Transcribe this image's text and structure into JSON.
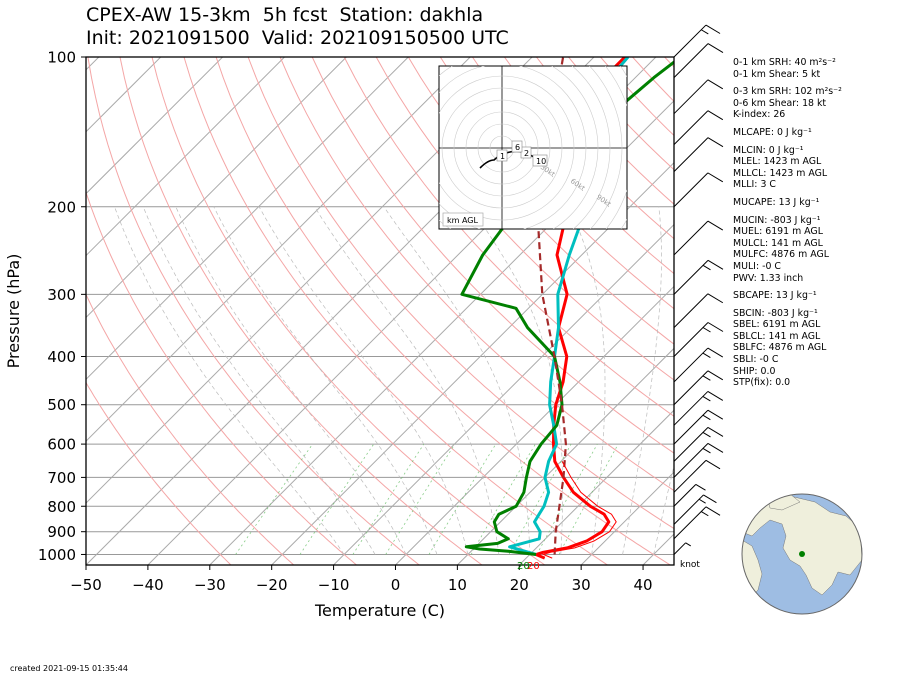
{
  "header": {
    "title_line1": "CPEX-AW 15-3km  5h fcst  Station: dakhla",
    "title_line2": "Init: 2021091500  Valid: 202109150500 UTC"
  },
  "footer": {
    "created": "created 2021-09-15 01:35:44"
  },
  "wind_units": "knot",
  "hodograph": {
    "label": "km AGL",
    "ring_labels": [
      "30kt",
      "60kt",
      "90kt"
    ],
    "height_markers": [
      "1",
      "2",
      "6",
      "10"
    ]
  },
  "stats": [
    "0-1 km SRH: 40 m²s⁻²",
    "0-1 km Shear: 5 kt",
    "0-3 km SRH: 102 m²s⁻²",
    "0-6 km Shear: 18 kt",
    "K-index: 26",
    "MLCAPE: 0 J kg⁻¹",
    "MLCIN: 0 J kg⁻¹",
    "MLEL: 1423 m AGL",
    "MLLCL: 1423 m AGL",
    "MLLI: 3 C",
    "MUCAPE: 13 J kg⁻¹",
    "MUCIN: -803 J kg⁻¹",
    "MUEL: 6191 m AGL",
    "MULCL: 141 m AGL",
    "MULFC: 4876 m AGL",
    "MULI: -0 C",
    "PWV: 1.33 inch",
    "SBCAPE: 13 J kg⁻¹",
    "SBCIN: -803 J kg⁻¹",
    "SBEL: 6191 m AGL",
    "SBLCL: 141 m AGL",
    "SBLFC: 4876 m AGL",
    "SBLI: -0 C",
    "SHIP: 0.0",
    "STP(fix): 0.0"
  ],
  "chart_data": {
    "type": "line",
    "xlabel": "Temperature (C)",
    "ylabel": "Pressure (hPa)",
    "xlim": [
      -50,
      45
    ],
    "ylim": [
      1050,
      100
    ],
    "y_scale": "log",
    "x_ticks": [
      -50,
      -40,
      -30,
      -20,
      -10,
      0,
      10,
      20,
      30,
      40
    ],
    "y_ticks": [
      100,
      200,
      300,
      400,
      500,
      600,
      700,
      800,
      900,
      1000
    ],
    "surface_labels": {
      "temp": "20",
      "dew": "20"
    },
    "series": [
      {
        "color": "#ff0000",
        "points": [
          [
            23,
            1017
          ],
          [
            21,
            1000
          ],
          [
            21.8,
            990
          ],
          [
            25,
            970
          ],
          [
            27,
            940
          ],
          [
            28,
            900
          ],
          [
            27.5,
            860
          ],
          [
            25.5,
            830
          ],
          [
            22,
            800
          ],
          [
            17,
            750
          ],
          [
            13,
            700
          ],
          [
            9,
            650
          ],
          [
            6,
            600
          ],
          [
            3,
            550
          ],
          [
            0,
            500
          ],
          [
            -2.5,
            450
          ],
          [
            -6,
            400
          ],
          [
            -12,
            350
          ],
          [
            -16,
            300
          ],
          [
            -24,
            250
          ],
          [
            -30,
            200
          ],
          [
            -35,
            170
          ],
          [
            -39,
            150
          ],
          [
            -43,
            135
          ],
          [
            -45,
            130
          ],
          [
            -45,
            100
          ]
        ]
      },
      {
        "color": "#00bfbf",
        "points": [
          [
            21,
            1000
          ],
          [
            15.5,
            965
          ],
          [
            19,
            930
          ],
          [
            18,
            900
          ],
          [
            15.5,
            860
          ],
          [
            15,
            830
          ],
          [
            14.5,
            800
          ],
          [
            13,
            750
          ],
          [
            10,
            700
          ],
          [
            8,
            650
          ],
          [
            6.5,
            600
          ],
          [
            3,
            550
          ],
          [
            -1,
            500
          ],
          [
            -4.5,
            450
          ],
          [
            -8,
            400
          ],
          [
            -12,
            350
          ],
          [
            -17.5,
            300
          ],
          [
            -22,
            250
          ],
          [
            -27,
            200
          ],
          [
            -34,
            170
          ],
          [
            -38.5,
            150
          ],
          [
            -43,
            135
          ],
          [
            -43.5,
            130
          ],
          [
            -44,
            110
          ],
          [
            -44.5,
            100
          ]
        ]
      },
      {
        "color": "#008000",
        "points": [
          [
            21,
            1000
          ],
          [
            16,
            985
          ],
          [
            11,
            975
          ],
          [
            8.5,
            965
          ],
          [
            13,
            950
          ],
          [
            14,
            930
          ],
          [
            11,
            900
          ],
          [
            9,
            860
          ],
          [
            8.5,
            830
          ],
          [
            10,
            800
          ],
          [
            9,
            750
          ],
          [
            7,
            700
          ],
          [
            5,
            650
          ],
          [
            4,
            600
          ],
          [
            3.5,
            550
          ],
          [
            1,
            500
          ],
          [
            -3,
            450
          ],
          [
            -8,
            400
          ],
          [
            -17,
            350
          ],
          [
            -22,
            320
          ],
          [
            -33,
            300
          ],
          [
            -36,
            250
          ],
          [
            -38,
            200
          ],
          [
            -40,
            170
          ],
          [
            -40.5,
            150
          ],
          [
            -38,
            130
          ],
          [
            -37,
            110
          ],
          [
            -36,
            100
          ]
        ]
      },
      {
        "color": "#a52a2a",
        "dashed": true,
        "points": [
          [
            24,
            1000
          ],
          [
            20.5,
            900
          ],
          [
            17,
            800
          ],
          [
            13,
            700
          ],
          [
            8,
            600
          ],
          [
            1,
            500
          ],
          [
            -8,
            400
          ],
          [
            -20,
            300
          ],
          [
            -35,
            200
          ],
          [
            -55,
            100
          ]
        ]
      }
    ],
    "wind_barbs": [
      {
        "pressure": 1000,
        "speed_kt": 10,
        "dir_deg": 20
      },
      {
        "pressure": 930,
        "speed_kt": 15,
        "dir_deg": 70
      },
      {
        "pressure": 870,
        "speed_kt": 15,
        "dir_deg": 60
      },
      {
        "pressure": 800,
        "speed_kt": 10,
        "dir_deg": 40
      },
      {
        "pressure": 750,
        "speed_kt": 10,
        "dir_deg": 70
      },
      {
        "pressure": 700,
        "speed_kt": 15,
        "dir_deg": 90
      },
      {
        "pressure": 650,
        "speed_kt": 15,
        "dir_deg": 90
      },
      {
        "pressure": 600,
        "speed_kt": 15,
        "dir_deg": 95
      },
      {
        "pressure": 550,
        "speed_kt": 15,
        "dir_deg": 95
      },
      {
        "pressure": 500,
        "speed_kt": 15,
        "dir_deg": 95
      },
      {
        "pressure": 450,
        "speed_kt": 15,
        "dir_deg": 95
      },
      {
        "pressure": 400,
        "speed_kt": 15,
        "dir_deg": 90
      },
      {
        "pressure": 350,
        "speed_kt": 10,
        "dir_deg": 95
      },
      {
        "pressure": 300,
        "speed_kt": 15,
        "dir_deg": 90
      },
      {
        "pressure": 250,
        "speed_kt": 10,
        "dir_deg": 95
      },
      {
        "pressure": 200,
        "speed_kt": 10,
        "dir_deg": 95
      },
      {
        "pressure": 170,
        "speed_kt": 10,
        "dir_deg": 90
      },
      {
        "pressure": 150,
        "speed_kt": 10,
        "dir_deg": 95
      },
      {
        "pressure": 130,
        "speed_kt": 10,
        "dir_deg": 95
      },
      {
        "pressure": 110,
        "speed_kt": 10,
        "dir_deg": 90
      },
      {
        "pressure": 100,
        "speed_kt": 15,
        "dir_deg": 70
      }
    ]
  }
}
